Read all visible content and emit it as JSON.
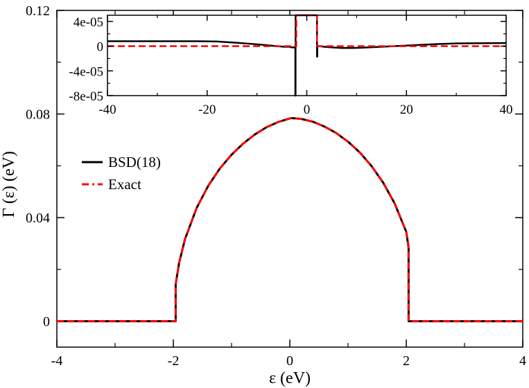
{
  "chart_data": [
    {
      "type": "line",
      "panel": "main",
      "xlabel": "ε (eV)",
      "ylabel": "Γ (ε) (eV)",
      "xlim": [
        -4,
        4
      ],
      "ylim": [
        -0.01,
        0.12
      ],
      "xticks": [
        -4,
        -2,
        0,
        2,
        4
      ],
      "xtick_labels": [
        "-4",
        "-2",
        "0",
        "2",
        "4"
      ],
      "yticks": [
        0,
        0.04,
        0.08,
        0.12
      ],
      "ytick_labels": [
        "0",
        "0.04",
        "0.08",
        "0.12"
      ],
      "grid": false,
      "legend_position": "left",
      "series": [
        {
          "name": "BSD(18)",
          "color": "#000000",
          "style": "solid",
          "x": [
            -4,
            -1.96,
            -1.96,
            -1.9,
            -1.8,
            -1.6,
            -1.4,
            -1.2,
            -1.0,
            -0.8,
            -0.6,
            -0.4,
            -0.2,
            0.0,
            0.04,
            0.2,
            0.4,
            0.6,
            0.8,
            1.0,
            1.2,
            1.4,
            1.6,
            1.8,
            2.0,
            2.04,
            2.04,
            4
          ],
          "y": [
            0,
            0,
            0.0142,
            0.0226,
            0.0317,
            0.0437,
            0.0523,
            0.059,
            0.0643,
            0.0686,
            0.0721,
            0.0749,
            0.0769,
            0.0783,
            0.0784,
            0.0781,
            0.077,
            0.0751,
            0.0726,
            0.0693,
            0.0652,
            0.06,
            0.0536,
            0.0455,
            0.0345,
            0.0284,
            0,
            0
          ]
        },
        {
          "name": "Exact",
          "color": "#ff0000",
          "style": "dashed",
          "x": [
            -4,
            -1.96,
            -1.96,
            -1.9,
            -1.8,
            -1.6,
            -1.4,
            -1.2,
            -1.0,
            -0.8,
            -0.6,
            -0.4,
            -0.2,
            0.0,
            0.04,
            0.2,
            0.4,
            0.6,
            0.8,
            1.0,
            1.2,
            1.4,
            1.6,
            1.8,
            2.0,
            2.04,
            2.04,
            4
          ],
          "y": [
            0,
            0,
            0.0142,
            0.0226,
            0.0317,
            0.0437,
            0.0523,
            0.059,
            0.0643,
            0.0686,
            0.0721,
            0.0749,
            0.0769,
            0.0783,
            0.0784,
            0.0781,
            0.077,
            0.0751,
            0.0726,
            0.0693,
            0.0652,
            0.06,
            0.0536,
            0.0455,
            0.0345,
            0.0284,
            0,
            0
          ]
        }
      ]
    },
    {
      "type": "line",
      "panel": "inset",
      "xlim": [
        -40,
        40
      ],
      "ylim": [
        -8e-05,
        5e-05
      ],
      "xticks": [
        -40,
        -20,
        0,
        20,
        40
      ],
      "xtick_labels": [
        "-40",
        "-20",
        "0",
        "20",
        "40"
      ],
      "yticks": [
        4e-05,
        0,
        -4e-05,
        -8e-05
      ],
      "ytick_labels": [
        "4e-05",
        "0",
        "-4e-05",
        "-8e-05"
      ],
      "series": [
        {
          "name": "BSD(18)",
          "color": "#000000",
          "style": "solid",
          "x": [
            -40,
            -30,
            -22,
            -18,
            -14,
            -10,
            -8,
            -6,
            -4.5,
            -3.5,
            -3,
            -2.5,
            -2.3,
            -2.3,
            -2.25,
            -2.25,
            -2.2,
            -2.2,
            2.0,
            2.0,
            2.05,
            2.05,
            2.1,
            2.1,
            2.5,
            3.5,
            5,
            7,
            9,
            11,
            15,
            20,
            25,
            30,
            40
          ],
          "y": [
            8e-06,
            8e-06,
            8e-06,
            7.5e-06,
            5.5e-06,
            3e-06,
            1.5e-06,
            0,
            -1e-06,
            -1e-06,
            -2e-06,
            -2e-06,
            0,
            -8e-05,
            -8e-05,
            5e-05,
            5e-05,
            5e-05,
            5e-05,
            5e-05,
            5e-05,
            -1.7e-05,
            -1.7e-05,
            0,
            0,
            -1e-06,
            -2e-06,
            -3e-06,
            -3e-06,
            -2.5e-06,
            -1e-06,
            1e-06,
            3e-06,
            4.5e-06,
            5e-06
          ]
        },
        {
          "name": "Exact",
          "color": "#ff0000",
          "style": "dashed",
          "x": [
            -40,
            -2.1,
            -2.1,
            -2.0,
            2.0,
            2.05,
            2.05,
            40
          ],
          "y": [
            0,
            0,
            5e-05,
            5e-05,
            5e-05,
            5e-05,
            0,
            0
          ]
        }
      ]
    }
  ]
}
